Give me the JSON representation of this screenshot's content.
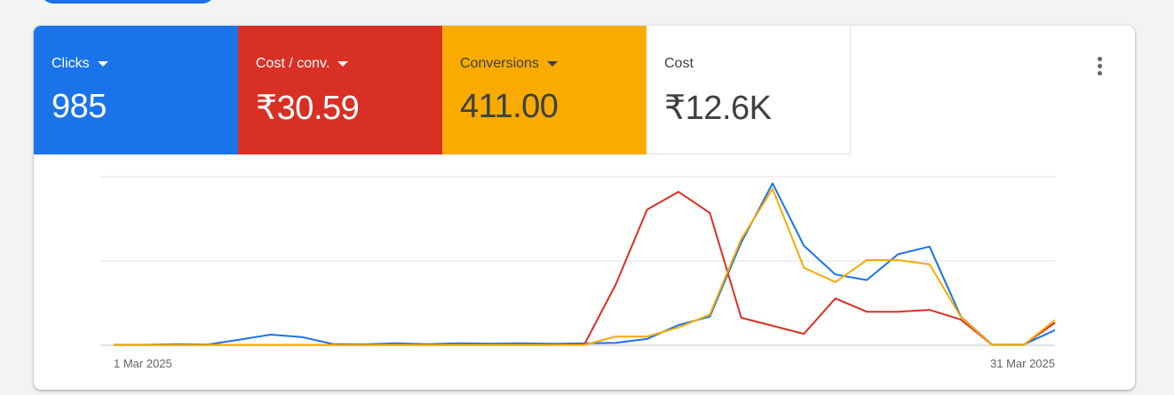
{
  "metrics": [
    {
      "label": "Clicks",
      "value": "985",
      "color": "#1a73e8",
      "has_dropdown": true
    },
    {
      "label": "Cost / conv.",
      "value": "₹30.59",
      "color": "#d93025",
      "has_dropdown": true
    },
    {
      "label": "Conversions",
      "value": "411.00",
      "color": "#f9ab00",
      "has_dropdown": true
    },
    {
      "label": "Cost",
      "value": "₹12.6K",
      "color": "#ffffff",
      "has_dropdown": false
    }
  ],
  "menu_icon": "more-vert-icon",
  "chart_data": {
    "type": "line",
    "x_ticks": [
      "1 Mar 2025",
      "31 Mar 2025"
    ],
    "grid": true,
    "series": [
      {
        "color": "#1a73e8",
        "values": [
          0.3,
          0.3,
          0.7,
          0.5,
          3.3,
          6.3,
          4.9,
          0.7,
          0.6,
          1.2,
          0.7,
          1.2,
          1.0,
          1.2,
          0.9,
          1.2,
          1.4,
          3.8,
          12.0,
          17.0,
          61.0,
          96.0,
          59.0,
          42.0,
          38.7,
          54.0,
          58.5,
          17.0,
          0.4,
          0.4,
          9.0
        ]
      },
      {
        "color": "#d93025",
        "values": [
          0.2,
          0.2,
          0.2,
          0.2,
          0.2,
          0.2,
          0.2,
          0.2,
          0.2,
          0.2,
          0.2,
          0.2,
          0.2,
          0.2,
          0.2,
          0.5,
          36.0,
          80.5,
          91.0,
          78.5,
          16.3,
          11.6,
          6.8,
          27.8,
          19.9,
          19.9,
          21.0,
          15.2,
          0.2,
          0.2,
          13.4
        ]
      },
      {
        "color": "#f9ab00",
        "values": [
          0.2,
          0.2,
          0.2,
          0.2,
          0.2,
          0.2,
          0.2,
          0.2,
          0.2,
          0.2,
          0.2,
          0.2,
          0.2,
          0.2,
          0.2,
          0.2,
          5.2,
          5.2,
          10.6,
          18.2,
          63.0,
          92.8,
          46.0,
          37.5,
          50.5,
          50.5,
          48.0,
          16.8,
          0.2,
          0.2,
          15.0
        ]
      }
    ]
  }
}
